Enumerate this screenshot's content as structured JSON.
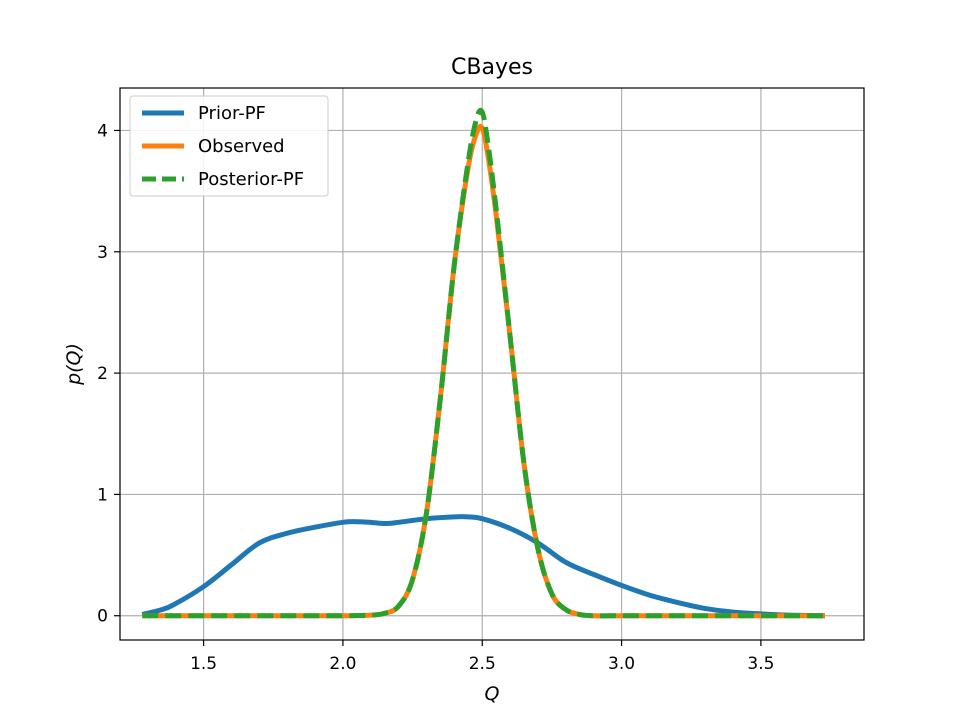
{
  "chart_data": {
    "type": "line",
    "title": "CBayes",
    "xlabel": "Q",
    "ylabel": "p(Q)",
    "xlim": [
      1.2,
      3.87
    ],
    "ylim": [
      -0.2,
      4.35
    ],
    "xticks": [
      1.5,
      2.0,
      2.5,
      3.0,
      3.5
    ],
    "xtick_labels": [
      "1.5",
      "2.0",
      "2.5",
      "3.0",
      "3.5"
    ],
    "yticks": [
      0,
      1,
      2,
      3,
      4
    ],
    "ytick_labels": [
      "0",
      "1",
      "2",
      "3",
      "4"
    ],
    "grid": true,
    "legend_position": "top-left",
    "series": [
      {
        "name": "Prior-PF",
        "color": "#1f77b4",
        "style": "solid",
        "x": [
          1.28,
          1.35,
          1.4,
          1.5,
          1.6,
          1.7,
          1.8,
          1.9,
          2.0,
          2.05,
          2.1,
          2.15,
          2.2,
          2.3,
          2.4,
          2.45,
          2.5,
          2.6,
          2.7,
          2.8,
          2.9,
          3.0,
          3.1,
          3.2,
          3.3,
          3.4,
          3.5,
          3.6,
          3.73
        ],
        "y": [
          0.01,
          0.05,
          0.1,
          0.24,
          0.42,
          0.6,
          0.68,
          0.73,
          0.77,
          0.775,
          0.77,
          0.76,
          0.77,
          0.8,
          0.815,
          0.815,
          0.8,
          0.72,
          0.6,
          0.44,
          0.34,
          0.25,
          0.17,
          0.11,
          0.06,
          0.03,
          0.015,
          0.005,
          0.0
        ]
      },
      {
        "name": "Observed",
        "color": "#ff7f0e",
        "style": "solid",
        "x": [
          1.28,
          1.5,
          1.8,
          2.0,
          2.1,
          2.15,
          2.2,
          2.25,
          2.3,
          2.35,
          2.4,
          2.45,
          2.48,
          2.5,
          2.52,
          2.55,
          2.6,
          2.65,
          2.7,
          2.75,
          2.8,
          2.85,
          2.9,
          3.0,
          3.5,
          3.73
        ],
        "y": [
          0,
          0,
          0,
          0,
          0.005,
          0.02,
          0.08,
          0.3,
          0.85,
          1.8,
          2.9,
          3.7,
          3.98,
          4.02,
          3.8,
          3.3,
          2.3,
          1.25,
          0.55,
          0.18,
          0.05,
          0.01,
          0,
          0,
          0,
          0
        ]
      },
      {
        "name": "Posterior-PF",
        "color": "#2ca02c",
        "style": "dashed",
        "x": [
          1.28,
          1.5,
          1.8,
          2.0,
          2.1,
          2.15,
          2.2,
          2.25,
          2.3,
          2.35,
          2.4,
          2.45,
          2.48,
          2.5,
          2.52,
          2.55,
          2.6,
          2.65,
          2.7,
          2.75,
          2.8,
          2.85,
          2.9,
          3.0,
          3.5,
          3.73
        ],
        "y": [
          0,
          0,
          0,
          0,
          0.005,
          0.02,
          0.08,
          0.3,
          0.85,
          1.8,
          2.9,
          3.75,
          4.1,
          4.15,
          3.9,
          3.35,
          2.3,
          1.25,
          0.55,
          0.18,
          0.05,
          0.01,
          0,
          0,
          0,
          0
        ]
      }
    ]
  }
}
